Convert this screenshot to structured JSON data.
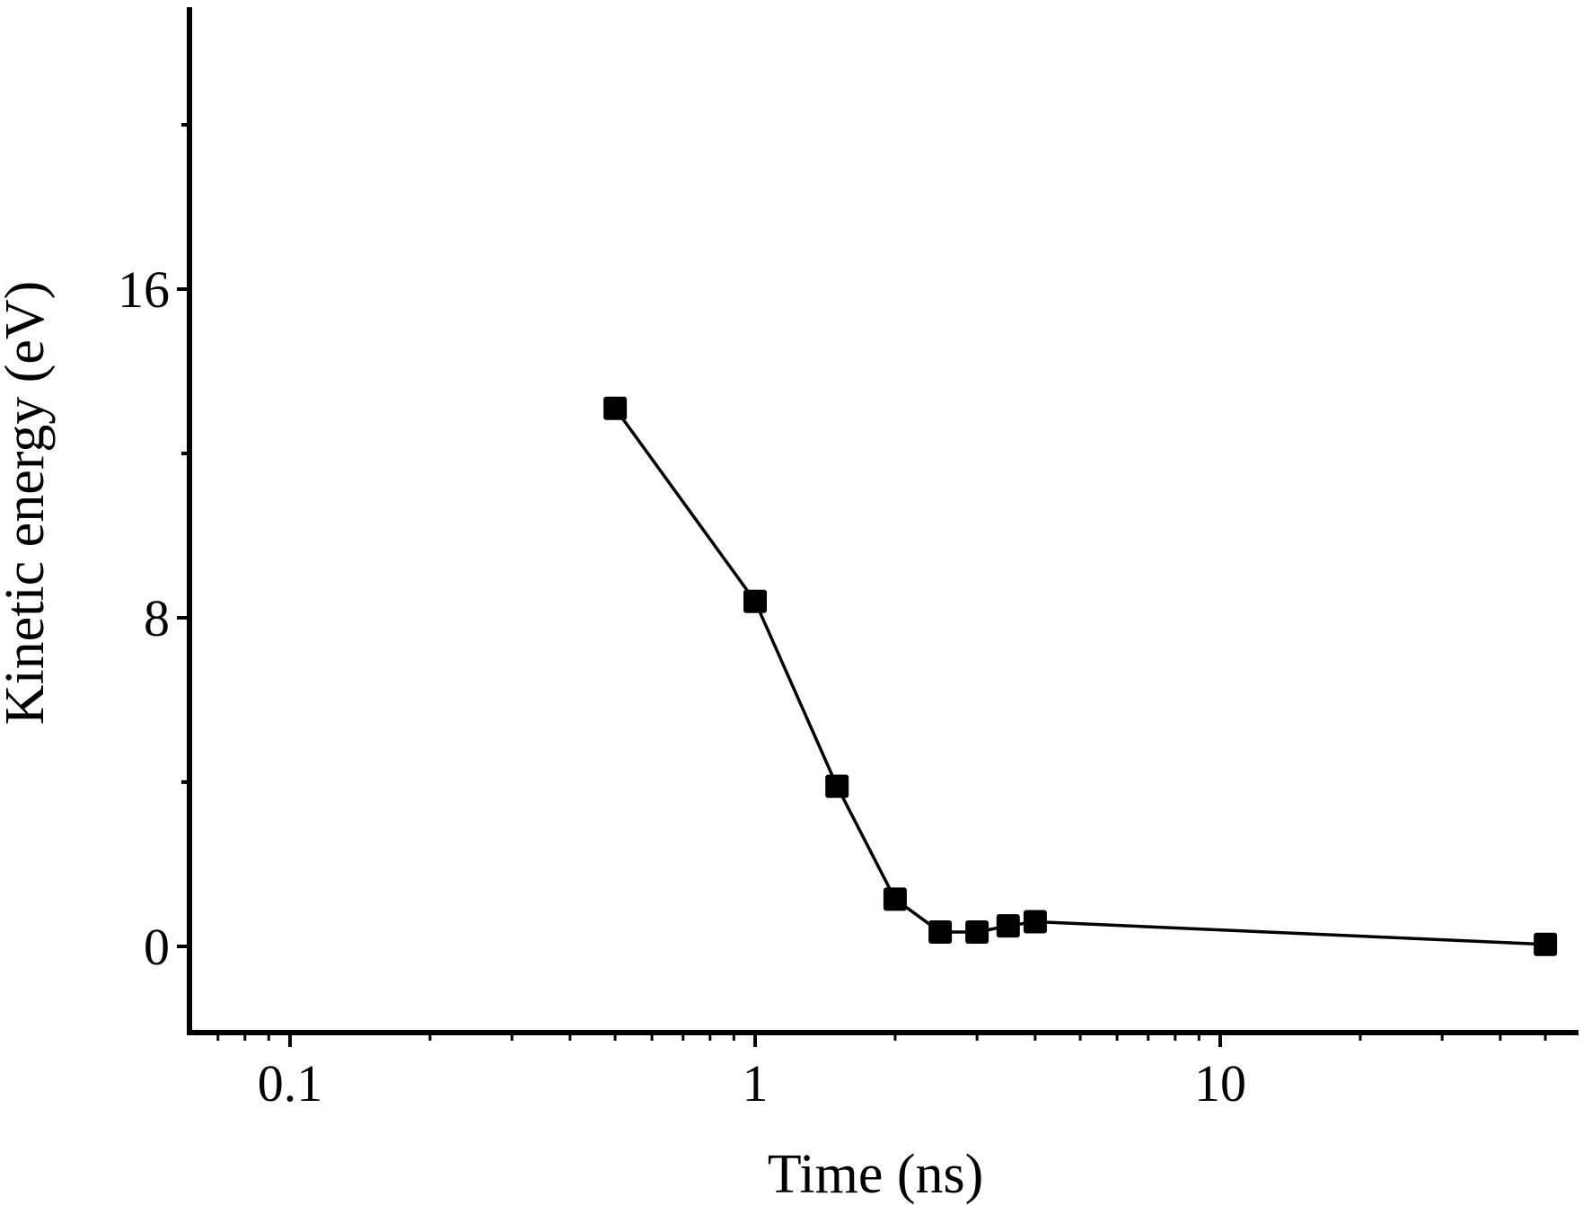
{
  "chart_data": {
    "type": "line",
    "xlabel": "Time (ns)",
    "ylabel": "Kinetic energy (eV)",
    "x_scale": "log",
    "xlim": [
      0.064,
      60
    ],
    "ylim": [
      -2.0,
      23.0
    ],
    "x_ticks": [
      {
        "value": 0.1,
        "label": "0.1"
      },
      {
        "value": 1,
        "label": "1"
      },
      {
        "value": 10,
        "label": "10"
      }
    ],
    "y_ticks": [
      {
        "value": 0,
        "label": "0"
      },
      {
        "value": 8,
        "label": "8"
      },
      {
        "value": 16,
        "label": "16"
      }
    ],
    "y_minor_ticks": [
      4,
      12,
      20
    ],
    "grid": false,
    "series": [
      {
        "marker": "square",
        "color": "#000000",
        "x": [
          0.5,
          1.0,
          1.5,
          2.0,
          2.5,
          3.0,
          3.5,
          4.0,
          50
        ],
        "y": [
          13.1,
          8.4,
          3.9,
          1.15,
          0.35,
          0.35,
          0.5,
          0.6,
          0.05
        ]
      }
    ]
  }
}
